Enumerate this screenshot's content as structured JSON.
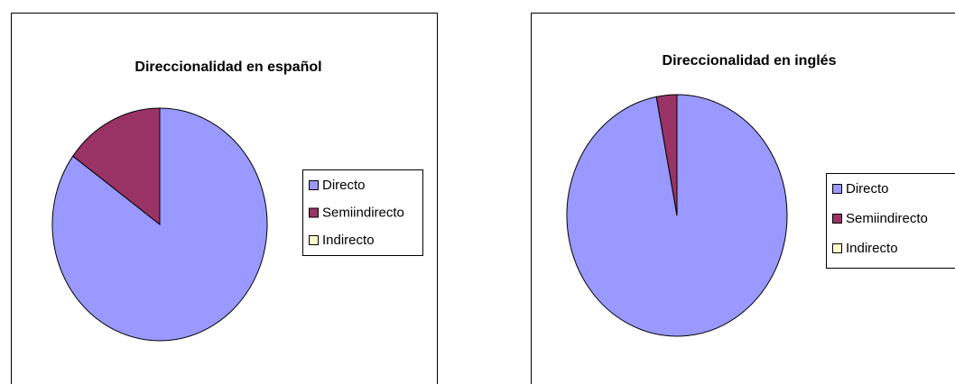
{
  "chart_data": [
    {
      "type": "pie",
      "title": "Direccionalidad en español",
      "categories": [
        "Directo",
        "Semiindirecto",
        "Indirecto"
      ],
      "values": [
        85,
        15,
        0
      ],
      "colors": [
        "#9999ff",
        "#993366",
        "#ffffcc"
      ],
      "legend": "right"
    },
    {
      "type": "pie",
      "title": "Direccionalidad en inglés",
      "categories": [
        "Directo",
        "Semiindirecto",
        "Indirecto"
      ],
      "values": [
        97,
        3,
        0
      ],
      "colors": [
        "#9999ff",
        "#993366",
        "#ffffcc"
      ],
      "legend": "right"
    }
  ]
}
